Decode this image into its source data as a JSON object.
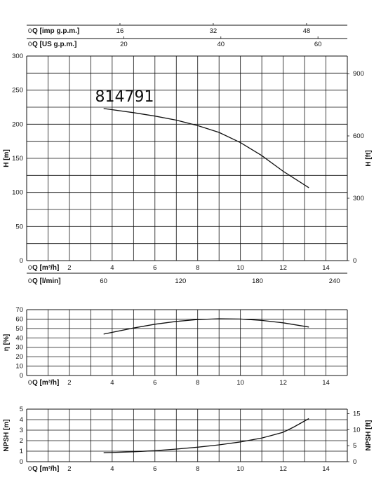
{
  "colors": {
    "grid": "#111111",
    "curve": "#111111",
    "background": "#ffffff"
  },
  "flow_scales": {
    "imp_gpm": {
      "label": "Q [imp g.p.m.]",
      "zero": "0",
      "ticks": [
        16,
        32,
        48
      ]
    },
    "us_gpm": {
      "label": "Q [US g.p.m.]",
      "zero": "0",
      "ticks": [
        20,
        40,
        60
      ]
    }
  },
  "chart_data": [
    {
      "type": "line",
      "title": "",
      "curve_label": "814791",
      "xlabel": "Q [m³/h]",
      "xlabel_secondary": "Q [l/min]",
      "x_ticks": [
        2,
        4,
        6,
        8,
        10,
        12,
        14
      ],
      "x_zero_label": "0",
      "x_secondary_zero": "0",
      "x_secondary_ticks": [
        60,
        120,
        180,
        240
      ],
      "ylabel": "H [m]",
      "ylabel_right": "H [ft]",
      "xlim": [
        0,
        15
      ],
      "ylim": [
        0,
        300
      ],
      "y_ticks": [
        0,
        50,
        100,
        150,
        200,
        250,
        300
      ],
      "y_right_ticks": [
        0,
        300,
        600,
        900
      ],
      "grid": true,
      "series": [
        {
          "x": [
            3.6,
            5,
            6,
            7,
            8,
            9,
            10,
            11,
            12,
            13.2
          ],
          "y": [
            223,
            217,
            212,
            206,
            198,
            188,
            173,
            154,
            131,
            107
          ]
        }
      ]
    },
    {
      "type": "line",
      "title": "",
      "xlabel": "Q [m³/h]",
      "x_ticks": [
        2,
        4,
        6,
        8,
        10,
        12,
        14
      ],
      "x_zero_label": "0",
      "ylabel": "η [%]",
      "xlim": [
        0,
        15
      ],
      "ylim": [
        0,
        70
      ],
      "y_ticks": [
        0,
        10,
        20,
        30,
        40,
        50,
        60,
        70
      ],
      "grid": true,
      "series": [
        {
          "x": [
            3.6,
            5,
            6,
            7,
            8,
            9,
            10,
            11,
            12,
            13.2
          ],
          "y": [
            44,
            50.5,
            54.5,
            57.5,
            59.5,
            60.3,
            60,
            58.5,
            56,
            51.5
          ]
        }
      ]
    },
    {
      "type": "line",
      "title": "",
      "xlabel": "Q [m³/h]",
      "x_ticks": [
        2,
        4,
        6,
        8,
        10,
        12,
        14
      ],
      "x_zero_label": "0",
      "ylabel": "NPSH [m]",
      "ylabel_right": "NPSH [ft]",
      "xlim": [
        0,
        15
      ],
      "ylim": [
        0,
        5
      ],
      "y_ticks": [
        0,
        1,
        2,
        3,
        4,
        5
      ],
      "y_right_ticks": [
        0,
        5,
        10,
        15
      ],
      "grid": true,
      "series": [
        {
          "x": [
            3.6,
            5,
            6,
            7,
            8,
            9,
            10,
            11,
            12,
            12.5,
            13.2
          ],
          "y": [
            0.85,
            0.95,
            1.05,
            1.2,
            1.38,
            1.6,
            1.88,
            2.25,
            2.8,
            3.3,
            4.1
          ]
        }
      ]
    }
  ]
}
